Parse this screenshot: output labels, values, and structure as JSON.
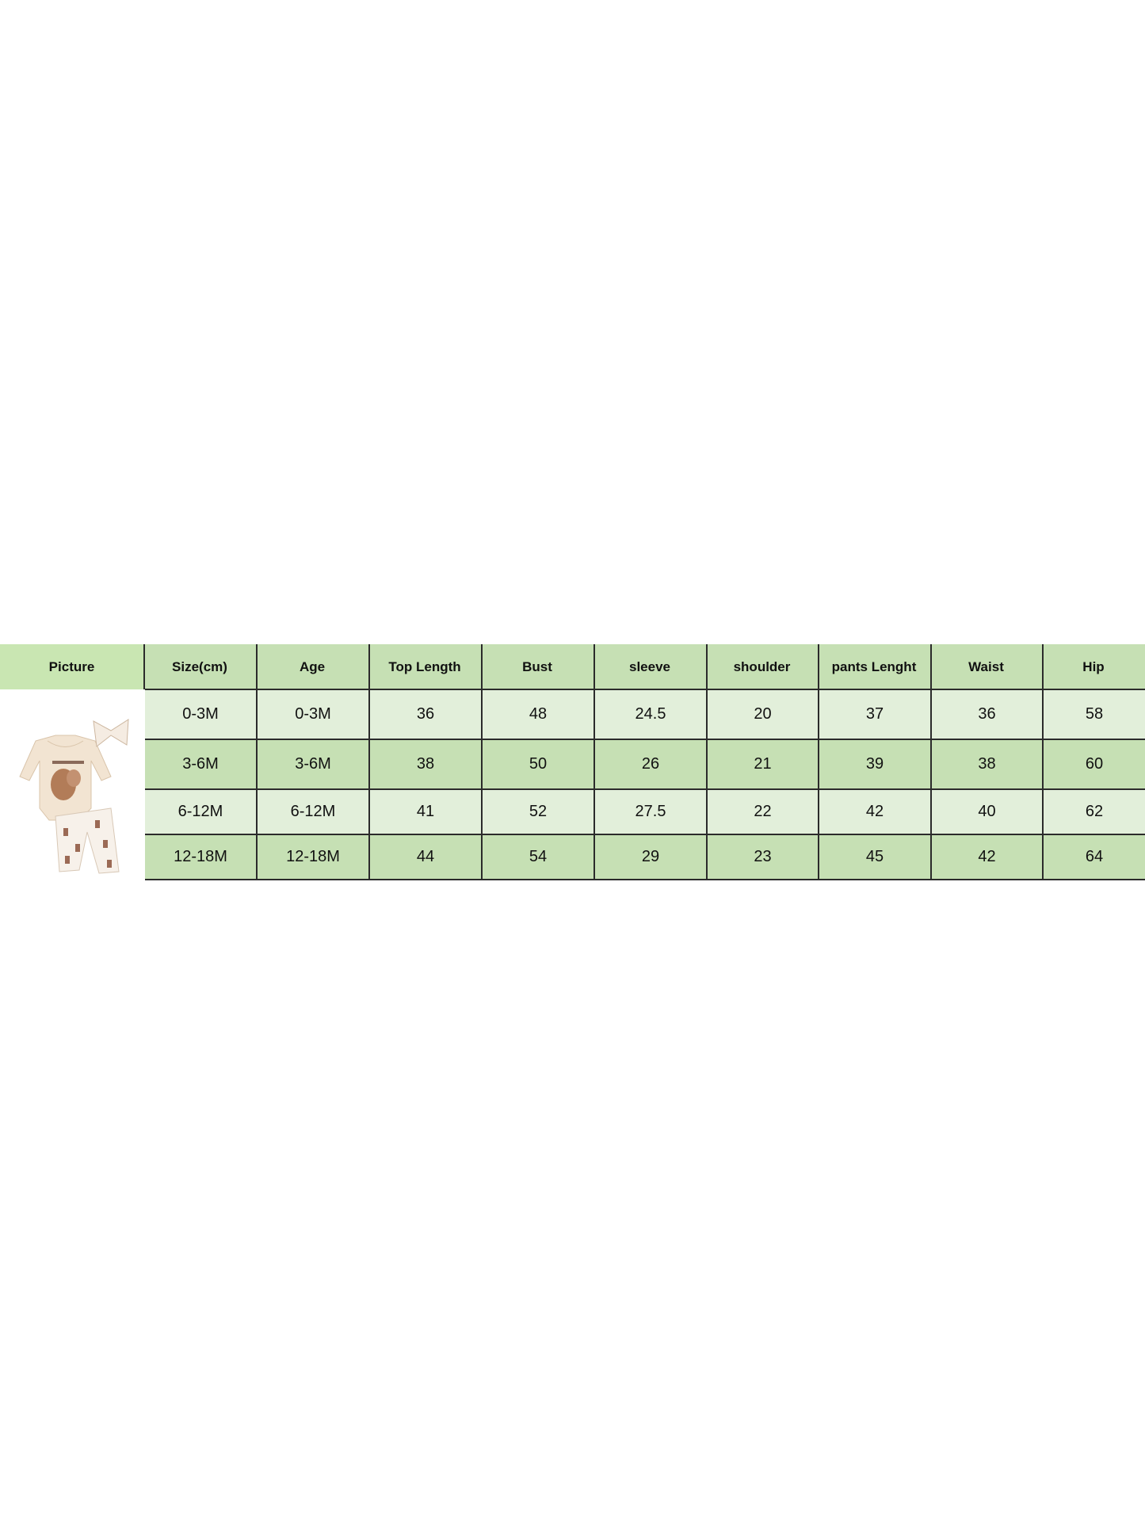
{
  "table": {
    "headers": [
      "Picture",
      "Size(cm)",
      "Age",
      "Top Length",
      "Bust",
      "sleeve",
      "shoulder",
      "pants Lenght",
      "Waist",
      "Hip"
    ],
    "rows": [
      [
        "0-3M",
        "0-3M",
        "36",
        "48",
        "24.5",
        "20",
        "37",
        "36",
        "58"
      ],
      [
        "3-6M",
        "3-6M",
        "38",
        "50",
        "26",
        "21",
        "39",
        "38",
        "60"
      ],
      [
        "6-12M",
        "6-12M",
        "41",
        "52",
        "27.5",
        "22",
        "42",
        "40",
        "62"
      ],
      [
        "12-18M",
        "12-18M",
        "44",
        "54",
        "29",
        "23",
        "45",
        "42",
        "64"
      ]
    ]
  },
  "colors": {
    "header": "#c6e0b4",
    "row_light": "#e2efda",
    "row_dark": "#c6e0b4",
    "border": "#2b2b2b"
  }
}
